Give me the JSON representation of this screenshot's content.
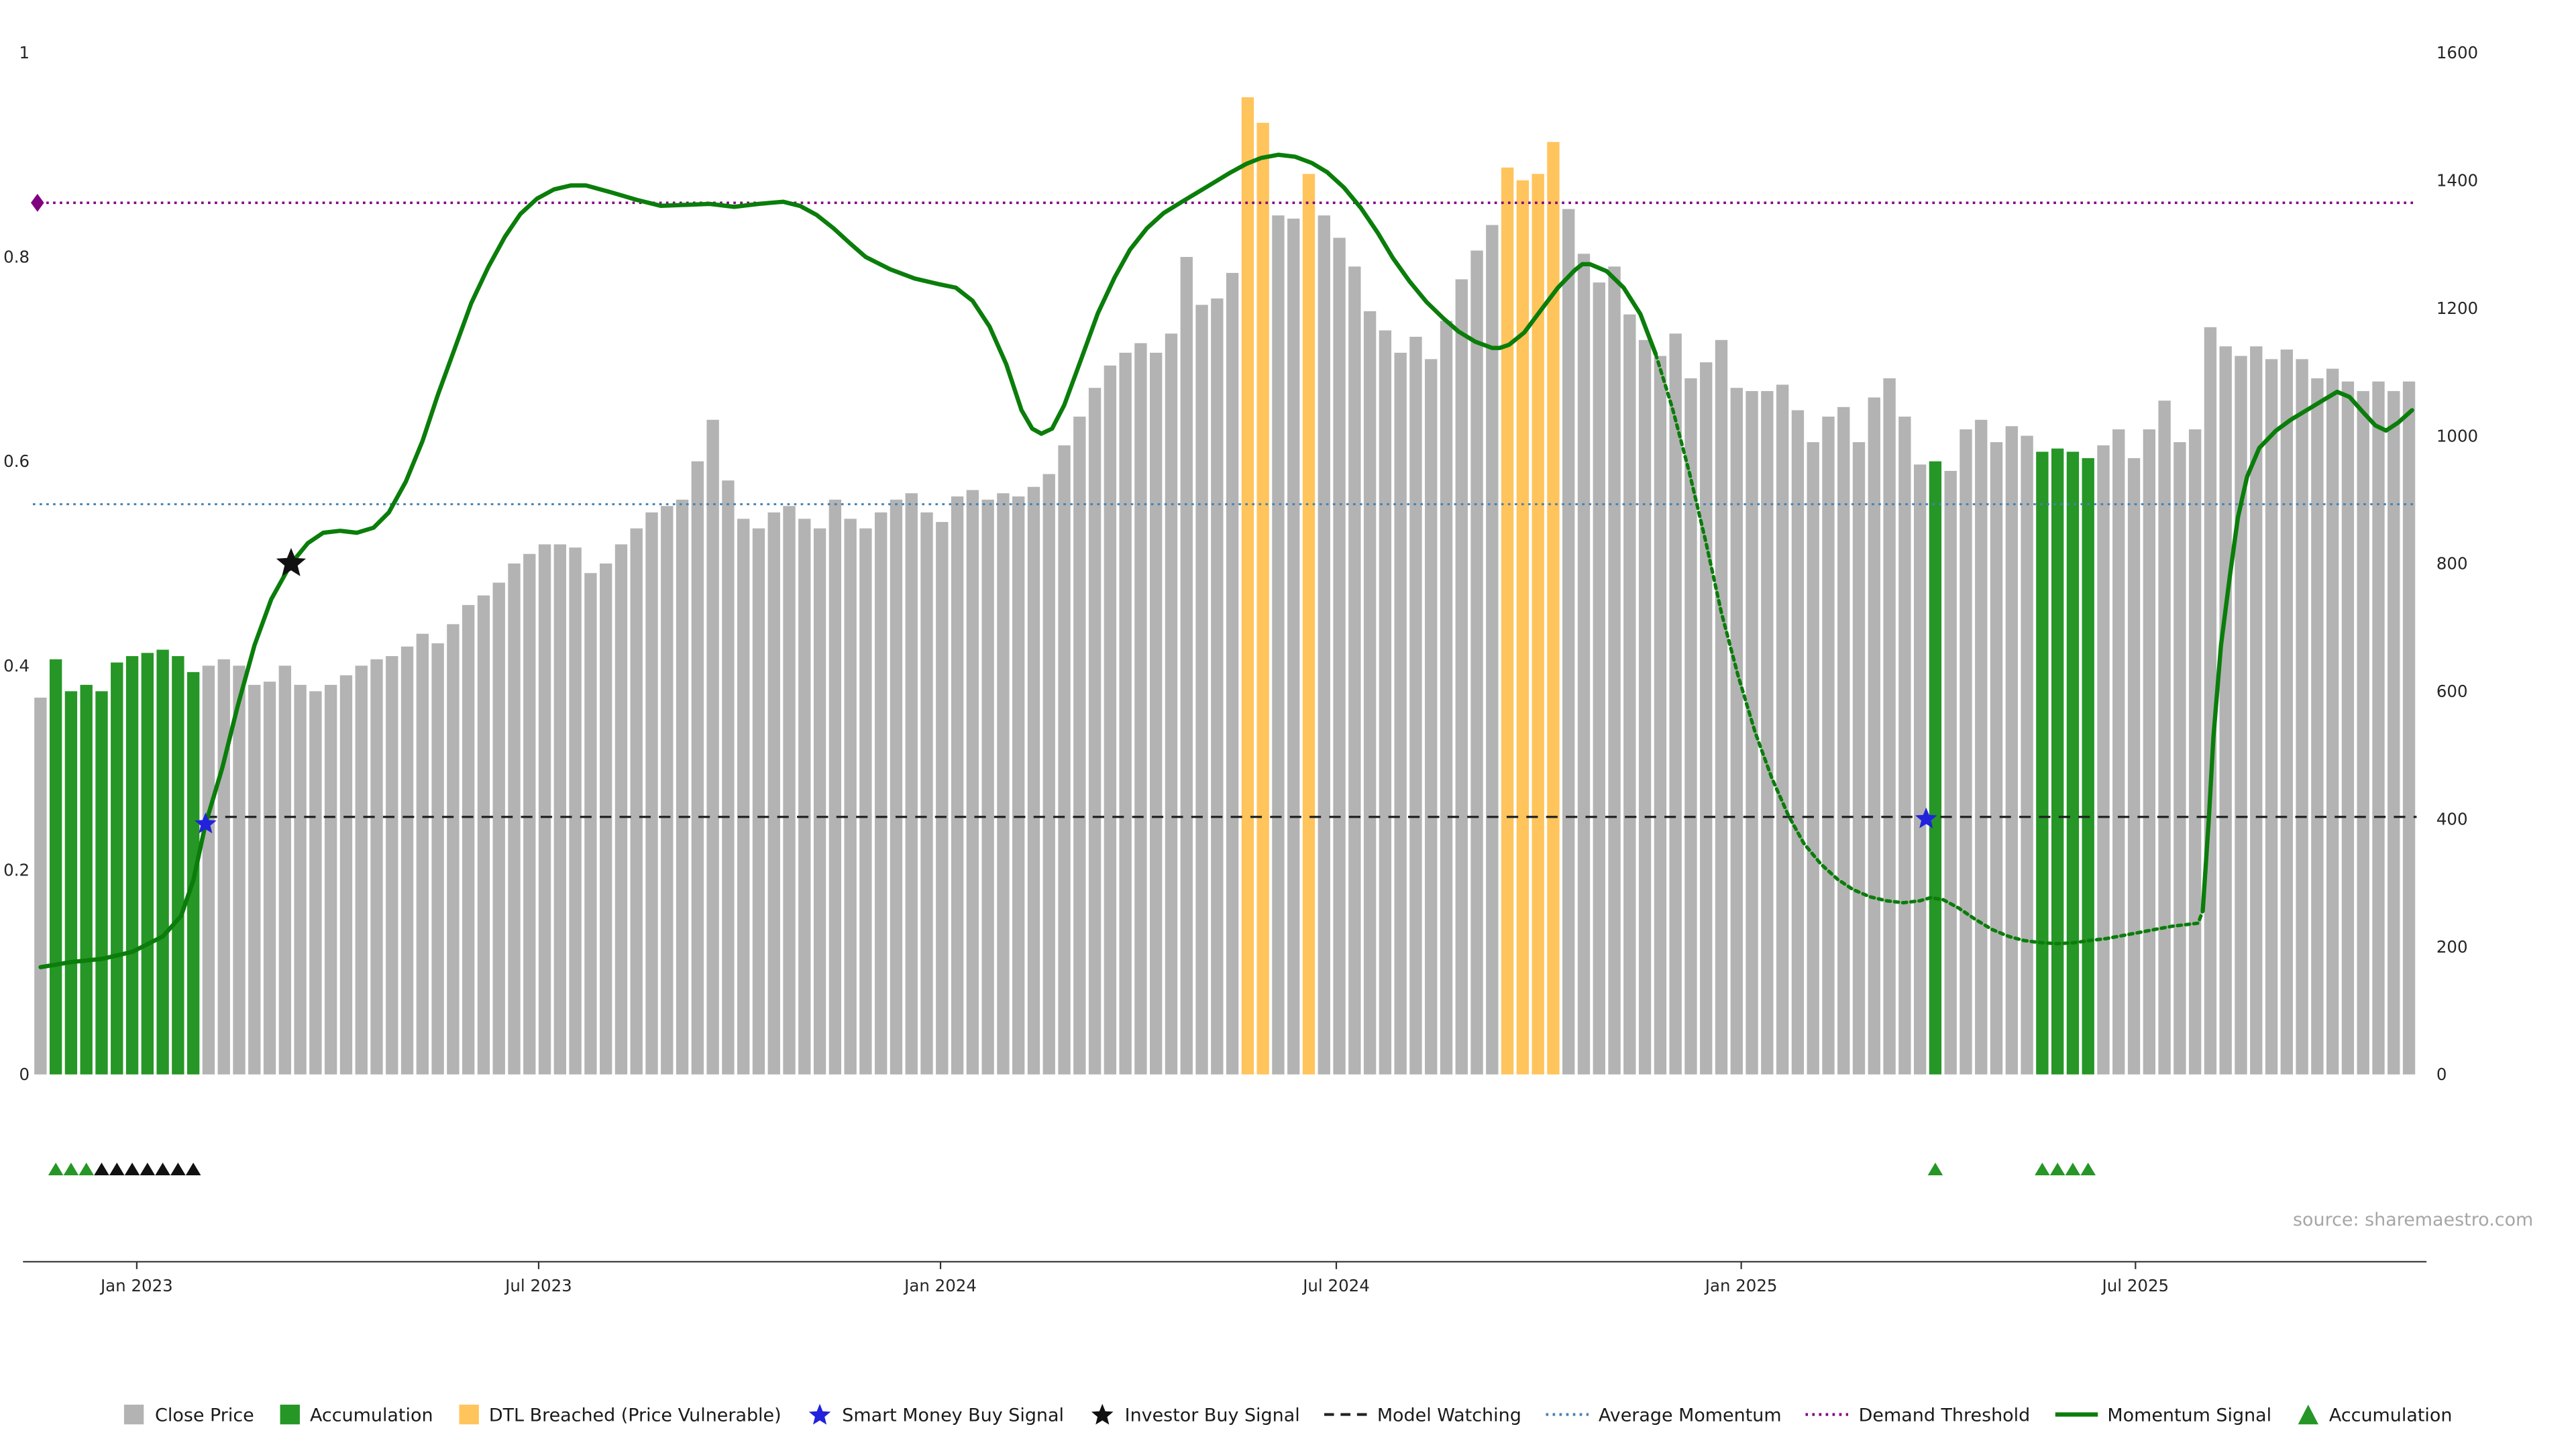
{
  "source_text": "source: sharemaestro.com",
  "colors": {
    "bar_gray": "#b3b3b3",
    "accumulation_green": "#269626",
    "dtl_orange": "#ffc45c",
    "momentum_green": "#0a7d0a",
    "smart_money_blue": "#2222dd",
    "investor_black": "#111111",
    "demand_purple": "#800080",
    "average_momentum_blue": "#4682B4",
    "model_watching_black": "#222222",
    "axis_text": "#262626"
  },
  "chart_data": {
    "type": "bar+line combo (weekly close price bars with momentum signal overlay)",
    "title": "",
    "grid": false,
    "legend_position": "bottom",
    "left_axis": {
      "range": [
        0,
        1
      ],
      "ticks": [
        {
          "v": 0,
          "label": "0"
        },
        {
          "v": 0.2,
          "label": "0.2"
        },
        {
          "v": 0.4,
          "label": "0.4"
        },
        {
          "v": 0.6,
          "label": "0.6"
        },
        {
          "v": 0.8,
          "label": "0.8"
        },
        {
          "v": 1,
          "label": "1"
        }
      ]
    },
    "right_axis": {
      "range": [
        0,
        1600
      ],
      "ticks": [
        {
          "v": 0,
          "label": "0"
        },
        {
          "v": 200,
          "label": "200"
        },
        {
          "v": 400,
          "label": "400"
        },
        {
          "v": 600,
          "label": "600"
        },
        {
          "v": 800,
          "label": "800"
        },
        {
          "v": 1000,
          "label": "1000"
        },
        {
          "v": 1200,
          "label": "1200"
        },
        {
          "v": 1400,
          "label": "1400"
        },
        {
          "v": 1600,
          "label": "1600"
        }
      ]
    },
    "x_axis": {
      "ticks": [
        {
          "index": 6.3,
          "label": "Jan 2023"
        },
        {
          "index": 32.6,
          "label": "Jul 2023"
        },
        {
          "index": 58.9,
          "label": "Jan 2024"
        },
        {
          "index": 84.8,
          "label": "Jul 2024"
        },
        {
          "index": 111.3,
          "label": "Jan 2025"
        },
        {
          "index": 137.1,
          "label": "Jul 2025"
        }
      ]
    },
    "series": {
      "close_price": {
        "type": "bar",
        "axis": "right",
        "values": [
          590,
          650,
          600,
          610,
          600,
          645,
          655,
          660,
          665,
          655,
          630,
          640,
          650,
          640,
          610,
          615,
          640,
          610,
          600,
          610,
          625,
          640,
          650,
          655,
          670,
          690,
          675,
          705,
          735,
          750,
          770,
          800,
          815,
          830,
          830,
          825,
          785,
          800,
          830,
          855,
          880,
          890,
          900,
          960,
          1025,
          930,
          870,
          855,
          880,
          890,
          870,
          855,
          900,
          870,
          855,
          880,
          900,
          910,
          880,
          865,
          905,
          915,
          900,
          910,
          905,
          920,
          940,
          985,
          1030,
          1075,
          1110,
          1130,
          1145,
          1130,
          1160,
          1280,
          1205,
          1215,
          1255,
          1530,
          1490,
          1345,
          1340,
          1410,
          1345,
          1310,
          1265,
          1195,
          1165,
          1130,
          1155,
          1120,
          1180,
          1245,
          1290,
          1330,
          1420,
          1400,
          1410,
          1460,
          1355,
          1285,
          1240,
          1265,
          1190,
          1150,
          1125,
          1160,
          1090,
          1115,
          1150,
          1075,
          1070,
          1070,
          1080,
          1040,
          990,
          1030,
          1045,
          990,
          1060,
          1090,
          1030,
          955,
          960,
          945,
          1010,
          1025,
          990,
          1015,
          1000,
          975,
          980,
          975,
          965,
          985,
          1010,
          965,
          1010,
          1055,
          990,
          1010,
          1170,
          1140,
          1125,
          1140,
          1120,
          1135,
          1120,
          1090,
          1105,
          1085,
          1070,
          1085,
          1070,
          1085
        ],
        "accumulation_indices": [
          1,
          2,
          3,
          4,
          5,
          6,
          7,
          8,
          9,
          10,
          124,
          131,
          132,
          133,
          134
        ],
        "dtl_breached_indices": [
          79,
          80,
          83,
          96,
          97,
          98,
          99
        ]
      },
      "momentum_signal": {
        "type": "line",
        "axis": "left",
        "dashed_between": [
          105.7,
          141.5
        ],
        "points": [
          [
            0,
            0.105
          ],
          [
            2,
            0.11
          ],
          [
            4,
            0.113
          ],
          [
            6,
            0.12
          ],
          [
            8,
            0.135
          ],
          [
            9.2,
            0.155
          ],
          [
            10,
            0.19
          ],
          [
            10.8,
            0.245
          ],
          [
            11.9,
            0.3
          ],
          [
            12.9,
            0.36
          ],
          [
            14,
            0.42
          ],
          [
            15.1,
            0.465
          ],
          [
            16.4,
            0.5
          ],
          [
            17.5,
            0.52
          ],
          [
            18.5,
            0.53
          ],
          [
            19.6,
            0.532
          ],
          [
            20.7,
            0.53
          ],
          [
            21.8,
            0.535
          ],
          [
            22.8,
            0.55
          ],
          [
            23.9,
            0.58
          ],
          [
            25,
            0.62
          ],
          [
            26,
            0.665
          ],
          [
            27.1,
            0.71
          ],
          [
            28.2,
            0.755
          ],
          [
            29.3,
            0.79
          ],
          [
            30.4,
            0.82
          ],
          [
            31.4,
            0.842
          ],
          [
            32.5,
            0.857
          ],
          [
            33.6,
            0.866
          ],
          [
            34.7,
            0.87
          ],
          [
            35.7,
            0.87
          ],
          [
            37.4,
            0.863
          ],
          [
            39,
            0.856
          ],
          [
            40.6,
            0.85
          ],
          [
            42.2,
            0.851
          ],
          [
            43.8,
            0.852
          ],
          [
            45.4,
            0.849
          ],
          [
            47,
            0.852
          ],
          [
            48.6,
            0.854
          ],
          [
            49.7,
            0.85
          ],
          [
            50.8,
            0.841
          ],
          [
            51.9,
            0.828
          ],
          [
            53,
            0.813
          ],
          [
            54,
            0.8
          ],
          [
            55.6,
            0.788
          ],
          [
            57.2,
            0.779
          ],
          [
            58.9,
            0.773
          ],
          [
            59.9,
            0.77
          ],
          [
            61,
            0.757
          ],
          [
            62.1,
            0.732
          ],
          [
            63.2,
            0.695
          ],
          [
            64.2,
            0.65
          ],
          [
            64.9,
            0.632
          ],
          [
            65.5,
            0.627
          ],
          [
            66.2,
            0.632
          ],
          [
            67,
            0.655
          ],
          [
            68.1,
            0.7
          ],
          [
            69.2,
            0.745
          ],
          [
            70.3,
            0.78
          ],
          [
            71.3,
            0.807
          ],
          [
            72.4,
            0.828
          ],
          [
            73.5,
            0.843
          ],
          [
            74.6,
            0.853
          ],
          [
            75.6,
            0.862
          ],
          [
            76.7,
            0.872
          ],
          [
            77.8,
            0.882
          ],
          [
            78.9,
            0.891
          ],
          [
            79.9,
            0.897
          ],
          [
            81,
            0.9
          ],
          [
            82.1,
            0.898
          ],
          [
            83.2,
            0.892
          ],
          [
            84.2,
            0.883
          ],
          [
            85.3,
            0.868
          ],
          [
            86.4,
            0.848
          ],
          [
            87.5,
            0.824
          ],
          [
            88.5,
            0.799
          ],
          [
            89.6,
            0.776
          ],
          [
            90.7,
            0.756
          ],
          [
            91.8,
            0.74
          ],
          [
            92.8,
            0.727
          ],
          [
            93.9,
            0.717
          ],
          [
            95,
            0.711
          ],
          [
            95.5,
            0.711
          ],
          [
            96.1,
            0.714
          ],
          [
            97.1,
            0.726
          ],
          [
            98.2,
            0.748
          ],
          [
            99.3,
            0.77
          ],
          [
            100.4,
            0.787
          ],
          [
            100.9,
            0.793
          ],
          [
            101.4,
            0.793
          ],
          [
            102.5,
            0.786
          ],
          [
            103.6,
            0.77
          ],
          [
            104.7,
            0.744
          ],
          [
            105.7,
            0.705
          ],
          [
            106.8,
            0.652
          ],
          [
            107.9,
            0.589
          ],
          [
            109,
            0.52
          ],
          [
            110,
            0.452
          ],
          [
            111.1,
            0.39
          ],
          [
            112.2,
            0.335
          ],
          [
            113.3,
            0.29
          ],
          [
            114.4,
            0.253
          ],
          [
            115.4,
            0.226
          ],
          [
            116.5,
            0.206
          ],
          [
            117.6,
            0.191
          ],
          [
            118.6,
            0.181
          ],
          [
            119.7,
            0.174
          ],
          [
            120.8,
            0.17
          ],
          [
            121.9,
            0.168
          ],
          [
            123,
            0.17
          ],
          [
            123.7,
            0.173
          ],
          [
            124.5,
            0.171
          ],
          [
            125.5,
            0.163
          ],
          [
            126.6,
            0.152
          ],
          [
            127.7,
            0.142
          ],
          [
            128.8,
            0.135
          ],
          [
            129.8,
            0.131
          ],
          [
            130.9,
            0.129
          ],
          [
            132,
            0.128
          ],
          [
            133.1,
            0.129
          ],
          [
            134.1,
            0.131
          ],
          [
            135.2,
            0.133
          ],
          [
            136.3,
            0.136
          ],
          [
            137.4,
            0.139
          ],
          [
            138.4,
            0.142
          ],
          [
            139.5,
            0.145
          ],
          [
            140.6,
            0.147
          ],
          [
            141.2,
            0.148
          ],
          [
            141.5,
            0.16
          ],
          [
            141.9,
            0.25
          ],
          [
            142.2,
            0.33
          ],
          [
            142.7,
            0.42
          ],
          [
            143.3,
            0.49
          ],
          [
            143.8,
            0.545
          ],
          [
            144.4,
            0.585
          ],
          [
            145.2,
            0.613
          ],
          [
            146.3,
            0.63
          ],
          [
            147.3,
            0.641
          ],
          [
            148.4,
            0.651
          ],
          [
            149.5,
            0.661
          ],
          [
            150.3,
            0.668
          ],
          [
            151.1,
            0.663
          ],
          [
            152,
            0.648
          ],
          [
            152.8,
            0.635
          ],
          [
            153.5,
            0.63
          ],
          [
            154.3,
            0.638
          ],
          [
            155.2,
            0.65
          ]
        ]
      }
    },
    "reference_lines": {
      "demand_threshold": {
        "value": 0.853,
        "style": "dotted",
        "color_key": "demand_purple"
      },
      "average_momentum": {
        "value": 0.558,
        "style": "dotted",
        "color_key": "average_momentum_blue"
      },
      "model_watching": {
        "value": 0.252,
        "style": "dashed",
        "start_index": 10.8,
        "color_key": "model_watching_black"
      }
    },
    "markers": {
      "smart_money_buy": [
        [
          10.8,
          0.245
        ],
        [
          123.4,
          0.25
        ]
      ],
      "investor_buy": [
        [
          16.4,
          0.5
        ]
      ],
      "demand_diamond": [
        [
          -0.2,
          0.853
        ]
      ],
      "accumulation_triangles": {
        "green": [
          1,
          2,
          3,
          124,
          131,
          132,
          133,
          134
        ],
        "black": [
          4,
          5,
          6,
          7,
          8,
          9,
          10
        ]
      }
    }
  },
  "legend": {
    "items": [
      {
        "name": "close-price",
        "glyph": "square",
        "color_key": "bar_gray",
        "label": "Close Price"
      },
      {
        "name": "accumulation",
        "glyph": "square",
        "color_key": "accumulation_green",
        "label": "Accumulation"
      },
      {
        "name": "dtl-breached",
        "glyph": "square",
        "color_key": "dtl_orange",
        "label": "DTL Breached (Price Vulnerable)"
      },
      {
        "name": "smart-money-buy-signal",
        "glyph": "star",
        "color_key": "smart_money_blue",
        "label": "Smart Money Buy Signal"
      },
      {
        "name": "investor-buy-signal",
        "glyph": "star",
        "color_key": "investor_black",
        "label": "Investor Buy Signal"
      },
      {
        "name": "model-watching",
        "glyph": "dashline",
        "color_key": "model_watching_black",
        "label": "Model Watching"
      },
      {
        "name": "average-momentum",
        "glyph": "dotline",
        "color_key": "average_momentum_blue",
        "label": "Average Momentum"
      },
      {
        "name": "demand-threshold",
        "glyph": "dotline",
        "color_key": "demand_purple",
        "label": "Demand Threshold"
      },
      {
        "name": "momentum-signal",
        "glyph": "solidline",
        "color_key": "momentum_green",
        "label": "Momentum Signal"
      },
      {
        "name": "accumulation-marker",
        "glyph": "triangle",
        "color_key": "accumulation_green",
        "label": "Accumulation"
      }
    ]
  }
}
